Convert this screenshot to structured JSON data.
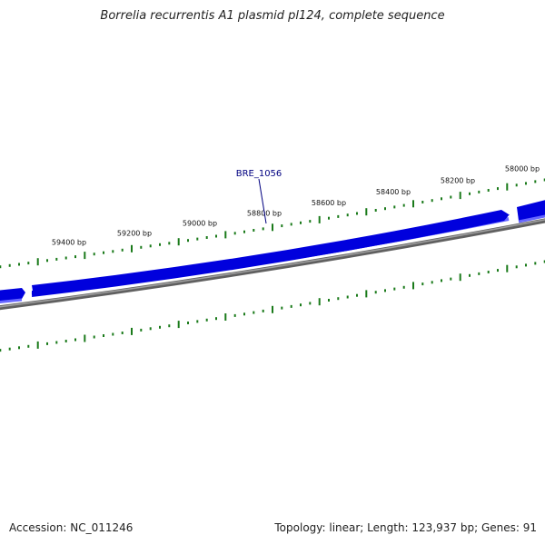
{
  "title": "Borrelia recurrentis A1 plasmid pl124, complete sequence",
  "footer": {
    "accession": "Accession: NC_011246",
    "summary": "Topology: linear; Length: 123,937 bp; Genes: 91"
  },
  "gene": {
    "label": "BRE_1056",
    "feature_position_bp": 58800
  },
  "ruler": {
    "unit": "bp",
    "labels": [
      "58000 bp",
      "58200 bp",
      "58400 bp",
      "58600 bp",
      "58800 bp",
      "59000 bp",
      "59200 bp",
      "59400 bp"
    ],
    "label_positions_bp": [
      58000,
      58200,
      58400,
      58600,
      58800,
      59000,
      59200,
      59400
    ]
  },
  "colors": {
    "gene_forward": "#0000dd",
    "gene_shadow": "#6666ff",
    "backbone": "#808080",
    "tick": "#1a7a1a",
    "gene_label": "#000080",
    "text": "#222222"
  }
}
